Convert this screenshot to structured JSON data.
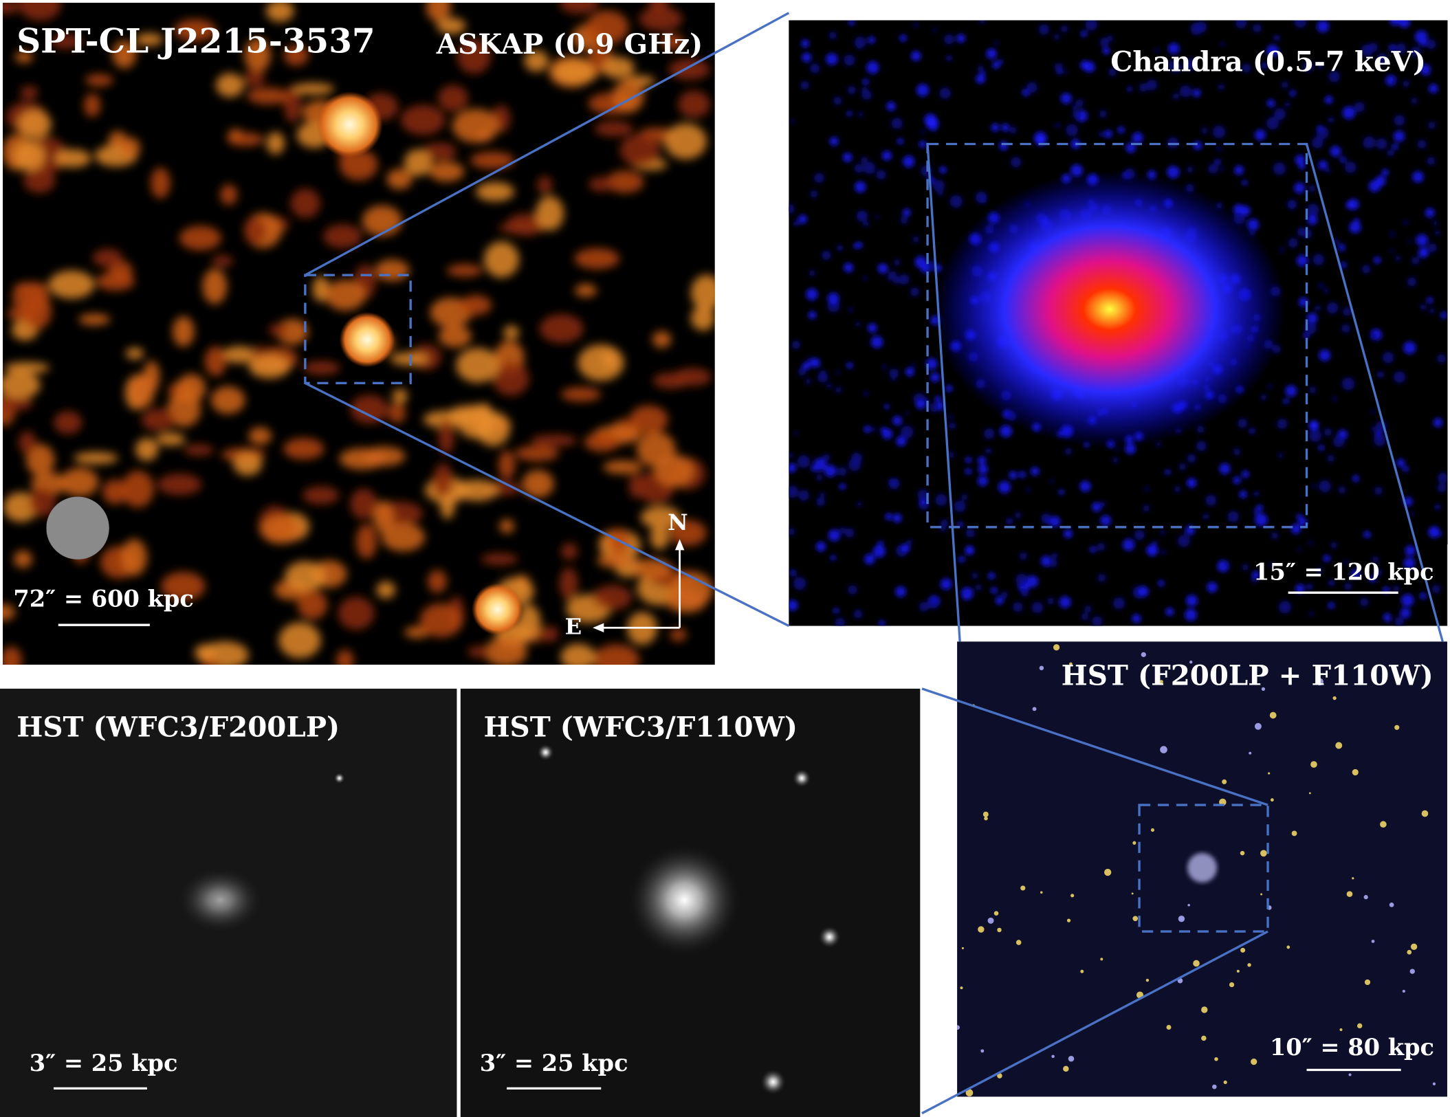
{
  "panels": [
    {
      "title": "SPT-CL J2215-3537",
      "instrument": "ASKAP (0.9 GHz)",
      "scale_label": "72″ = 600 kpc",
      "compass_north": "N",
      "compass_east": "E"
    },
    {
      "instrument": "Chandra (0.5-7 keV)",
      "scale_label": "15″ = 120 kpc"
    },
    {
      "instrument": "HST (F200LP + F110W)",
      "scale_label": "10″ = 80 kpc"
    },
    {
      "instrument": "HST (WFC3/F200LP)",
      "scale_label": "3″ = 25 kpc"
    },
    {
      "instrument": "HST (WFC3/F110W)",
      "scale_label": "3″ = 25 kpc"
    }
  ]
}
